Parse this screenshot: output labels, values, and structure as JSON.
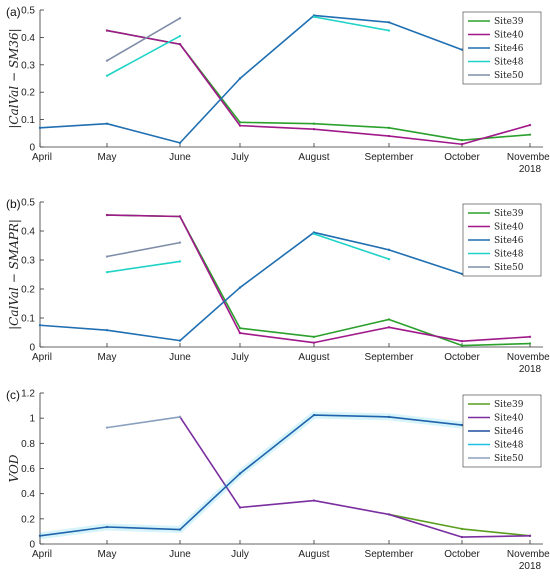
{
  "chart_data": [
    {
      "type": "line",
      "panel_label": "(a)",
      "ylabel": "|CalVal − SM36|",
      "ylim": [
        0,
        0.5
      ],
      "yticks": [
        "0",
        "0.1",
        "0.2",
        "0.3",
        "0.4",
        "0.5"
      ],
      "categories": [
        "April",
        "May",
        "June",
        "July",
        "August",
        "September",
        "October",
        "November"
      ],
      "year_label": "2018",
      "legend_position": "top-right",
      "grid": false,
      "series": [
        {
          "name": "Site39",
          "color": "#2ca02c",
          "values": [
            null,
            0.425,
            0.375,
            0.09,
            0.085,
            0.07,
            0.025,
            0.045
          ]
        },
        {
          "name": "Site40",
          "color": "#a0198a",
          "values": [
            null,
            0.425,
            0.375,
            0.078,
            0.065,
            0.04,
            0.01,
            0.08
          ]
        },
        {
          "name": "Site46",
          "color": "#1f6fb2",
          "values": [
            0.07,
            0.085,
            0.015,
            0.25,
            0.48,
            0.455,
            0.355,
            null
          ]
        },
        {
          "name": "Site48",
          "color": "#1fd3c6",
          "values": [
            null,
            0.26,
            0.405,
            null,
            0.475,
            0.425,
            null,
            null
          ]
        },
        {
          "name": "Site50",
          "color": "#7f8ea8",
          "values": [
            null,
            0.315,
            0.47,
            null,
            null,
            null,
            null,
            null
          ]
        }
      ]
    },
    {
      "type": "line",
      "panel_label": "(b)",
      "ylabel": "|CalVal − SMAPR|",
      "ylim": [
        0,
        0.5
      ],
      "yticks": [
        "0",
        "0.1",
        "0.2",
        "0.3",
        "0.4",
        "0.5"
      ],
      "categories": [
        "April",
        "May",
        "June",
        "July",
        "August",
        "September",
        "October",
        "November"
      ],
      "year_label": "2018",
      "legend_position": "top-right",
      "grid": false,
      "series": [
        {
          "name": "Site39",
          "color": "#2ca02c",
          "values": [
            null,
            0.455,
            0.45,
            0.065,
            0.035,
            0.095,
            0.005,
            0.012
          ]
        },
        {
          "name": "Site40",
          "color": "#a0198a",
          "values": [
            null,
            0.455,
            0.45,
            0.048,
            0.015,
            0.068,
            0.02,
            0.035
          ]
        },
        {
          "name": "Site46",
          "color": "#1f6fb2",
          "values": [
            0.075,
            0.058,
            0.022,
            0.205,
            0.395,
            0.335,
            0.252,
            null
          ]
        },
        {
          "name": "Site48",
          "color": "#1fd3c6",
          "values": [
            null,
            0.258,
            0.295,
            null,
            0.39,
            0.303,
            null,
            null
          ]
        },
        {
          "name": "Site50",
          "color": "#7f8ea8",
          "values": [
            null,
            0.312,
            0.36,
            null,
            null,
            null,
            null,
            null
          ]
        }
      ]
    },
    {
      "type": "line",
      "panel_label": "(c)",
      "ylabel": "VOD",
      "ylim": [
        0,
        1.2
      ],
      "yticks": [
        "0",
        "0.2",
        "0.4",
        "0.6",
        "0.8",
        "1",
        "1.2"
      ],
      "categories": [
        "April",
        "May",
        "June",
        "July",
        "August",
        "September",
        "October",
        "November"
      ],
      "year_label": "2018",
      "legend_position": "top-right",
      "grid": false,
      "series": [
        {
          "name": "Site39",
          "color": "#5a9e1f",
          "values": [
            null,
            null,
            null,
            null,
            null,
            0.235,
            0.12,
            0.065
          ]
        },
        {
          "name": "Site40",
          "color": "#7a2ea0",
          "values": [
            null,
            null,
            1.01,
            0.29,
            0.345,
            0.235,
            0.055,
            0.065
          ]
        },
        {
          "name": "Site46",
          "color": "#1f4fa0",
          "values": [
            0.065,
            0.135,
            0.115,
            0.56,
            1.025,
            1.01,
            0.945,
            null
          ]
        },
        {
          "name": "Site48",
          "color": "#1fc0e6",
          "values": [
            0.065,
            0.135,
            0.115,
            0.56,
            1.025,
            1.01,
            0.945,
            null
          ]
        },
        {
          "name": "Site50",
          "color": "#8aa0bf",
          "values": [
            null,
            0.925,
            1.01,
            null,
            null,
            null,
            null,
            null
          ]
        }
      ]
    }
  ]
}
